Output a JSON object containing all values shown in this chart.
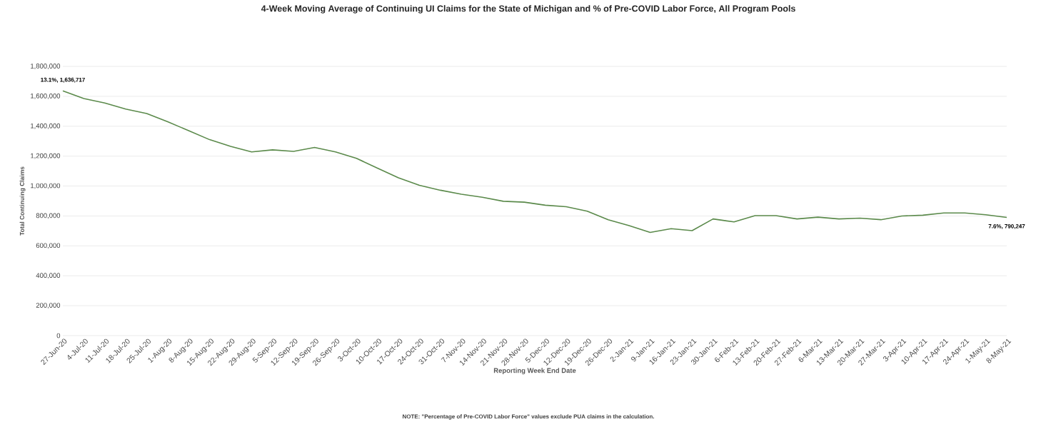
{
  "chart_data": {
    "type": "line",
    "title": "4-Week Moving Average of Continuing UI Claims for the State of Michigan and % of Pre-COVID Labor Force, All Program Pools",
    "xlabel": "Reporting Week End Date",
    "ylabel": "Total Continuing Claims",
    "categories": [
      "27-Jun-20",
      "4-Jul-20",
      "11-Jul-20",
      "18-Jul-20",
      "25-Jul-20",
      "1-Aug-20",
      "8-Aug-20",
      "15-Aug-20",
      "22-Aug-20",
      "29-Aug-20",
      "5-Sep-20",
      "12-Sep-20",
      "19-Sep-20",
      "26-Sep-20",
      "3-Oct-20",
      "10-Oct-20",
      "17-Oct-20",
      "24-Oct-20",
      "31-Oct-20",
      "7-Nov-20",
      "14-Nov-20",
      "21-Nov-20",
      "28-Nov-20",
      "5-Dec-20",
      "12-Dec-20",
      "19-Dec-20",
      "26-Dec-20",
      "2-Jan-21",
      "9-Jan-21",
      "16-Jan-21",
      "23-Jan-21",
      "30-Jan-21",
      "6-Feb-21",
      "13-Feb-21",
      "20-Feb-21",
      "27-Feb-21",
      "6-Mar-21",
      "13-Mar-21",
      "20-Mar-21",
      "27-Mar-21",
      "3-Apr-21",
      "10-Apr-21",
      "17-Apr-21",
      "24-Apr-21",
      "1-May-21",
      "8-May-21"
    ],
    "series": [
      {
        "color": "#5b8a4b",
        "values": [
          1636717,
          1585000,
          1555000,
          1515000,
          1485000,
          1430000,
          1370000,
          1310000,
          1265000,
          1228000,
          1242000,
          1232000,
          1258000,
          1228000,
          1185000,
          1120000,
          1055000,
          1005000,
          972000,
          945000,
          925000,
          898000,
          892000,
          872000,
          862000,
          832000,
          775000,
          735000,
          690000,
          715000,
          702000,
          780000,
          760000,
          802000,
          802000,
          780000,
          792000,
          780000,
          785000,
          775000,
          800000,
          805000,
          820000,
          820000,
          808000,
          790247
        ]
      }
    ],
    "ylim": [
      0,
      1800000
    ],
    "yticks": [
      {
        "value": 0,
        "label": "0"
      },
      {
        "value": 200000,
        "label": "200,000"
      },
      {
        "value": 400000,
        "label": "400,000"
      },
      {
        "value": 600000,
        "label": "600,000"
      },
      {
        "value": 800000,
        "label": "800,000"
      },
      {
        "value": 1000000,
        "label": "1,000,000"
      },
      {
        "value": 1200000,
        "label": "1,200,000"
      },
      {
        "value": 1400000,
        "label": "1,400,000"
      },
      {
        "value": 1600000,
        "label": "1,600,000"
      },
      {
        "value": 1800000,
        "label": "1,800,000"
      }
    ],
    "grid": "y",
    "annotations": [
      {
        "text": "13.1%, 1,636,717",
        "x": "27-Jun-20",
        "y": 1636717
      },
      {
        "text": "7.6%, 790,247",
        "x": "8-May-21",
        "y": 790247
      },
      "NOTE: \"Percentage of Pre-COVID Labor Force\" values exclude PUA claims in the calculation."
    ]
  }
}
